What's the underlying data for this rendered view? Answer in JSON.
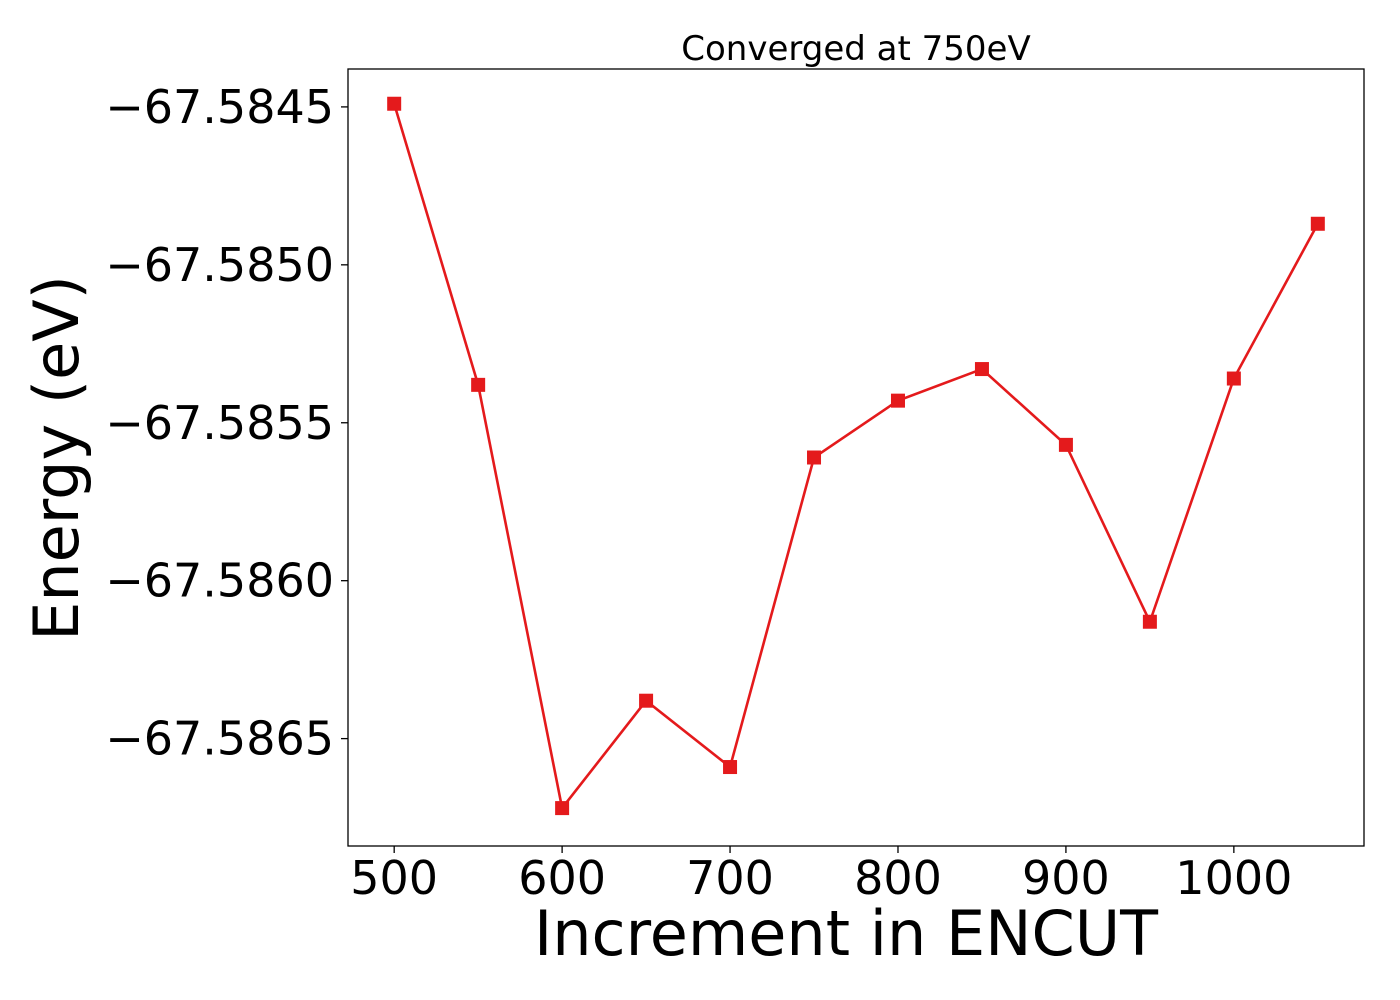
{
  "chart_data": {
    "type": "line",
    "title": "Converged at 750eV",
    "xlabel": "Increment in ENCUT",
    "ylabel": "Energy (eV)",
    "x": [
      500,
      550,
      600,
      650,
      700,
      750,
      800,
      850,
      900,
      950,
      1000,
      1050
    ],
    "series": [
      {
        "values": [
          -67.58449,
          -67.58538,
          -67.58672,
          -67.58638,
          -67.58659,
          -67.58561,
          -67.58543,
          -67.58533,
          -67.58557,
          -67.58613,
          -67.58536,
          -67.58487
        ],
        "color": "#e41a1c",
        "marker": "square"
      }
    ],
    "xlim": [
      472.5,
      1077.5
    ],
    "ylim": [
      -67.58684,
      -67.58438
    ],
    "xticks": [
      500,
      600,
      700,
      800,
      900,
      1000
    ],
    "yticks": [
      -67.5845,
      -67.585,
      -67.5855,
      -67.586,
      -67.5865
    ],
    "ytick_labels": [
      "−67.5845",
      "−67.5850",
      "−67.5855",
      "−67.5860",
      "−67.5865"
    ],
    "grid": false,
    "legend": "none"
  }
}
